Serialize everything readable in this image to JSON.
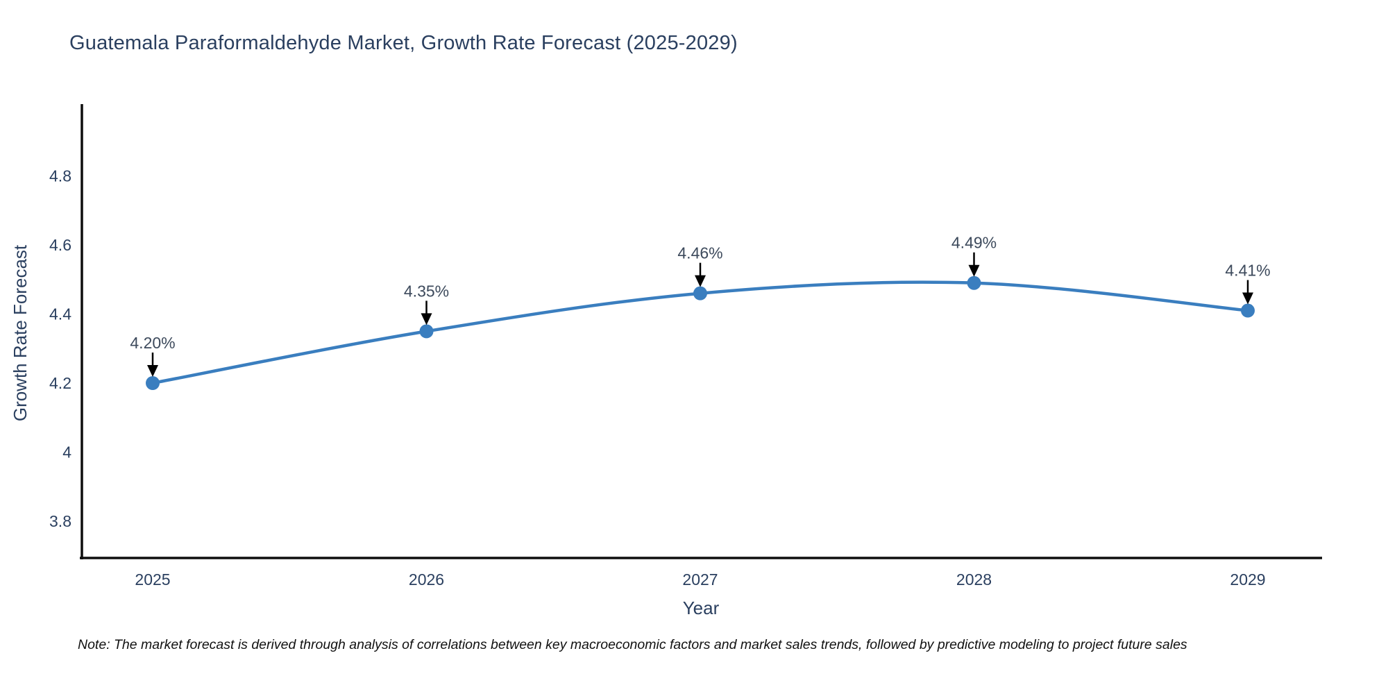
{
  "title": "Guatemala Paraformaldehyde Market, Growth Rate Forecast (2025-2029)",
  "note": "Note: The market forecast is derived through analysis of correlations between key macroeconomic factors and market sales trends, followed by predictive modeling to project future sales",
  "colors": {
    "line": "#3a7ebf",
    "marker": "#3a7ebf",
    "text": "#2a3f5f",
    "annotation_text": "#3d4a5c",
    "axis": "#0d0d0d",
    "arrow": "#000000",
    "background": "#ffffff"
  },
  "chart_data": {
    "type": "line",
    "title": "Guatemala Paraformaldehyde Market, Growth Rate Forecast (2025-2029)",
    "xlabel": "Year",
    "ylabel": "Growth Rate Forecast",
    "x": [
      2025,
      2026,
      2027,
      2028,
      2029
    ],
    "series": [
      {
        "name": "Growth Rate Forecast",
        "values": [
          4.2,
          4.35,
          4.46,
          4.49,
          4.41
        ],
        "point_labels": [
          "4.20%",
          "4.35%",
          "4.46%",
          "4.49%",
          "4.41%"
        ]
      }
    ],
    "y_ticks": [
      3.8,
      4,
      4.2,
      4.4,
      4.6,
      4.8
    ],
    "ylim": [
      3.69,
      5.0
    ],
    "xlim": [
      2024.73,
      2029.27
    ],
    "grid": false,
    "legend_position": "none",
    "line_shape": "spline",
    "marker_symbol": "circle",
    "annotations_have_arrows": true
  }
}
